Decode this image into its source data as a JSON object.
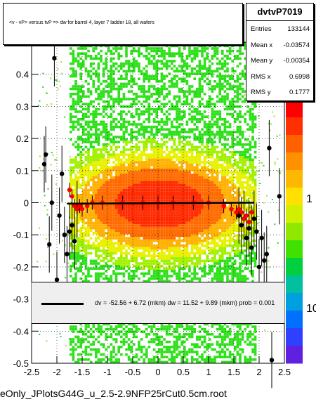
{
  "title": "<v - vP>       versus  tvP =>  dw for barrel 4, layer 7 ladder 18, all wafers",
  "stats": {
    "name": "dvtvP7019",
    "rows": [
      {
        "key": "Entries",
        "value": "133144"
      },
      {
        "key": "Mean x",
        "value": "-0.03574"
      },
      {
        "key": "Mean y",
        "value": "-0.00354"
      },
      {
        "key": "RMS x",
        "value": "0.6998"
      },
      {
        "key": "RMS y",
        "value": "0.1777"
      }
    ]
  },
  "fit_text": "dv =   -52.56 +   6.72  (mkm) dw =    11.52 +   9.89  (mkm) prob = 0.001",
  "file_label": "eOnly_JPlotsG44G_u_2.5-2.9NFP25rCut0.5cm.root",
  "colors": {
    "fit_band": "#efefef",
    "red_points": "#ff0000",
    "black_points": "#000000"
  },
  "chart_data": {
    "type": "heatmap",
    "xlim": [
      -2.5,
      2.5
    ],
    "ylim": [
      -0.5,
      0.5
    ],
    "x_ticks": [
      "-2.5",
      "-2",
      "-1.5",
      "-1",
      "-0.5",
      "0",
      "0.5",
      "1",
      "1.5",
      "2",
      "2.5"
    ],
    "y_ticks": [
      "-0.5",
      "-0.4",
      "-0.3",
      "-0.2",
      "-0.1",
      "0",
      "0.1",
      "0.2",
      "0.3",
      "0.4"
    ],
    "z_ticks": [
      "1",
      "10"
    ],
    "grid": true,
    "black_profile": [
      {
        "x": -2.25,
        "y": 0.12
      },
      {
        "x": -2.22,
        "y": 0.15
      },
      {
        "x": -2.15,
        "y": -0.13
      },
      {
        "x": -2.1,
        "y": 0.0
      },
      {
        "x": -2.05,
        "y": 0.45
      },
      {
        "x": -2.0,
        "y": -0.24
      },
      {
        "x": -1.95,
        "y": -0.04
      },
      {
        "x": -1.9,
        "y": 0.09
      },
      {
        "x": -1.85,
        "y": -0.1
      },
      {
        "x": -1.8,
        "y": -0.16
      },
      {
        "x": -1.75,
        "y": -0.09
      },
      {
        "x": -1.7,
        "y": -0.07
      },
      {
        "x": -1.65,
        "y": -0.12
      },
      {
        "x": -1.6,
        "y": -0.02
      },
      {
        "x": 1.6,
        "y": -0.04
      },
      {
        "x": 1.65,
        "y": -0.07
      },
      {
        "x": 1.7,
        "y": -0.05
      },
      {
        "x": 1.75,
        "y": -0.11
      },
      {
        "x": 1.8,
        "y": -0.08
      },
      {
        "x": 1.85,
        "y": -0.14
      },
      {
        "x": 1.9,
        "y": -0.05
      },
      {
        "x": 1.95,
        "y": -0.09
      },
      {
        "x": 2.0,
        "y": -0.2
      },
      {
        "x": 2.05,
        "y": -0.11
      },
      {
        "x": 2.1,
        "y": -0.18
      },
      {
        "x": 2.15,
        "y": -0.16
      },
      {
        "x": 2.2,
        "y": 0.17
      },
      {
        "x": 2.25,
        "y": -0.49
      },
      {
        "x": 2.4,
        "y": 0.02
      }
    ],
    "red_profile": [
      {
        "x": -1.75,
        "y": 0.04
      },
      {
        "x": -1.7,
        "y": 0.02
      },
      {
        "x": -1.65,
        "y": -0.01
      },
      {
        "x": -1.6,
        "y": -0.02
      },
      {
        "x": -1.55,
        "y": -0.01
      },
      {
        "x": -1.5,
        "y": -0.02
      },
      {
        "x": -1.4,
        "y": -0.01
      },
      {
        "x": -1.3,
        "y": 0.0
      },
      {
        "x": -1.1,
        "y": 0.0
      },
      {
        "x": -0.7,
        "y": 0.0
      },
      {
        "x": -0.3,
        "y": 0.0
      },
      {
        "x": 0.0,
        "y": 0.0
      },
      {
        "x": 0.3,
        "y": 0.0
      },
      {
        "x": 0.7,
        "y": 0.0
      },
      {
        "x": 1.0,
        "y": 0.0
      },
      {
        "x": 1.3,
        "y": -0.01
      },
      {
        "x": 1.45,
        "y": -0.02
      },
      {
        "x": 1.55,
        "y": -0.03
      },
      {
        "x": 1.6,
        "y": -0.02
      },
      {
        "x": 1.65,
        "y": -0.03
      },
      {
        "x": 1.7,
        "y": -0.05
      },
      {
        "x": 1.75,
        "y": -0.04
      },
      {
        "x": 1.8,
        "y": -0.06
      },
      {
        "x": 1.85,
        "y": -0.03
      }
    ],
    "fit_line": {
      "x": [
        -1.8,
        1.9
      ],
      "y": [
        -0.003,
        0.0
      ]
    }
  }
}
